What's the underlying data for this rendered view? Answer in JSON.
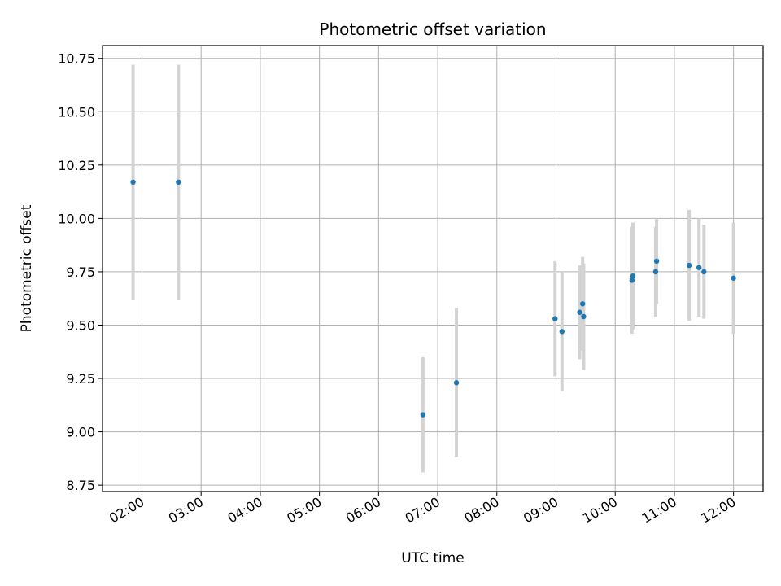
{
  "chart_data": {
    "type": "scatter",
    "title": "Photometric offset variation",
    "xlabel": "UTC time",
    "ylabel": "Photometric offset",
    "grid": true,
    "ylim": [
      8.72,
      10.81
    ],
    "xlim": [
      "01:20",
      "12:30"
    ],
    "x_ticks": [
      "02:00",
      "03:00",
      "04:00",
      "05:00",
      "06:00",
      "07:00",
      "08:00",
      "09:00",
      "10:00",
      "11:00",
      "12:00"
    ],
    "y_ticks": [
      "8.75",
      "9.00",
      "9.25",
      "9.50",
      "9.75",
      "10.00",
      "10.25",
      "10.50",
      "10.75"
    ],
    "colors": {
      "point": "#1f77b4",
      "errorbar": "#d3d3d3",
      "grid": "#b0b0b0"
    },
    "points": [
      {
        "x": "01:51",
        "y": 10.17,
        "err": 0.55
      },
      {
        "x": "02:37",
        "y": 10.17,
        "err": 0.55
      },
      {
        "x": "06:45",
        "y": 9.08,
        "err": 0.27
      },
      {
        "x": "07:19",
        "y": 9.23,
        "err": 0.35
      },
      {
        "x": "08:59",
        "y": 9.53,
        "err": 0.27
      },
      {
        "x": "09:06",
        "y": 9.47,
        "err": 0.28
      },
      {
        "x": "09:24",
        "y": 9.56,
        "err": 0.22
      },
      {
        "x": "09:27",
        "y": 9.6,
        "err": 0.22
      },
      {
        "x": "09:28",
        "y": 9.54,
        "err": 0.25
      },
      {
        "x": "10:17",
        "y": 9.71,
        "err": 0.25
      },
      {
        "x": "10:18",
        "y": 9.73,
        "err": 0.25
      },
      {
        "x": "10:41",
        "y": 9.75,
        "err": 0.21
      },
      {
        "x": "10:42",
        "y": 9.8,
        "err": 0.2
      },
      {
        "x": "11:15",
        "y": 9.78,
        "err": 0.26
      },
      {
        "x": "11:25",
        "y": 9.77,
        "err": 0.23
      },
      {
        "x": "11:30",
        "y": 9.75,
        "err": 0.22
      },
      {
        "x": "12:00",
        "y": 9.72,
        "err": 0.26
      }
    ]
  }
}
